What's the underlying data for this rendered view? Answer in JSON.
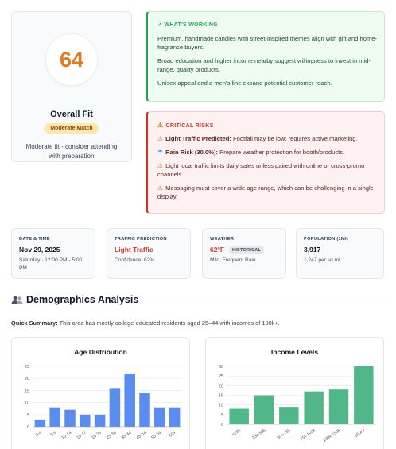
{
  "score": {
    "value": "64",
    "title": "Overall Fit",
    "badge": "Moderate Match",
    "description": "Moderate fit - consider attending with preparation"
  },
  "working": {
    "heading": "✓ WHAT'S WORKING",
    "items": [
      "Premium, handmade candles with street-inspired themes align with gift and home-fragrance buyers.",
      "Broad education and higher income nearby suggest willingness to invest in mid-range, quality products.",
      "Unisex appeal and a men's line expand potential customer reach."
    ]
  },
  "risks": {
    "heading": "CRITICAL RISKS",
    "items": [
      {
        "icon": "warning-icon",
        "bold": "Light Traffic Predicted:",
        "text": " Footfall may be low; requires active marketing."
      },
      {
        "icon": "rain-icon",
        "bold": "Rain Risk (30.0%):",
        "text": " Prepare weather protection for booth/products."
      },
      {
        "icon": "warning-icon",
        "bold": "",
        "text": "Light local traffic limits daily sales unless paired with online or cross-promo channels."
      },
      {
        "icon": "warning-icon",
        "bold": "",
        "text": "Messaging must cover a wide age range, which can be challenging in a single display."
      }
    ]
  },
  "stats": {
    "date": {
      "label": "DATE & TIME",
      "value": "Nov 29, 2025",
      "sub": "Saturday · 12:00 PM - 5:00 PM"
    },
    "traffic": {
      "label": "TRAFFIC PREDICTION",
      "value": "Light Traffic",
      "sub": "Confidence: 62%"
    },
    "weather": {
      "label": "WEATHER",
      "value": "62°F",
      "tag": "HISTORICAL",
      "sub": "Mild, Frequent Rain"
    },
    "population": {
      "label": "POPULATION (1MI)",
      "value": "3,917",
      "sub": "1,247 per sq mi"
    }
  },
  "demographics": {
    "title": "Demographics Analysis",
    "summary_label": "Quick Summary:",
    "summary_text": " This area has mostly college-educated residents aged 25–44 with incomes of 100k+."
  },
  "colors": {
    "age_bar": "#5b8def",
    "income_bar": "#52b788",
    "accent_orange": "#e07b25",
    "risk_red": "#c0392b",
    "success_green": "#2e9a57"
  },
  "chart_data": [
    {
      "type": "bar",
      "title": "Age Distribution",
      "categories": [
        "0-4",
        "5-9",
        "10-14",
        "15-17",
        "18-24",
        "25-34",
        "35-44",
        "45-54",
        "55-64",
        "65+"
      ],
      "values": [
        3,
        8,
        7,
        5,
        5,
        16,
        22,
        14,
        8,
        8
      ],
      "ylim": [
        0,
        25
      ],
      "yticks": [
        0,
        5,
        10,
        15,
        20,
        25
      ],
      "grid": true
    },
    {
      "type": "bar",
      "title": "Income Levels",
      "categories": [
        "<25k",
        "25k-50k",
        "50k-75k",
        "75k-100k",
        "100k-150k",
        "150k+"
      ],
      "values": [
        8,
        15,
        9,
        17,
        18,
        30
      ],
      "ylim": [
        0,
        30
      ],
      "yticks": [
        0,
        5,
        10,
        15,
        20,
        25,
        30
      ],
      "grid": true
    }
  ]
}
